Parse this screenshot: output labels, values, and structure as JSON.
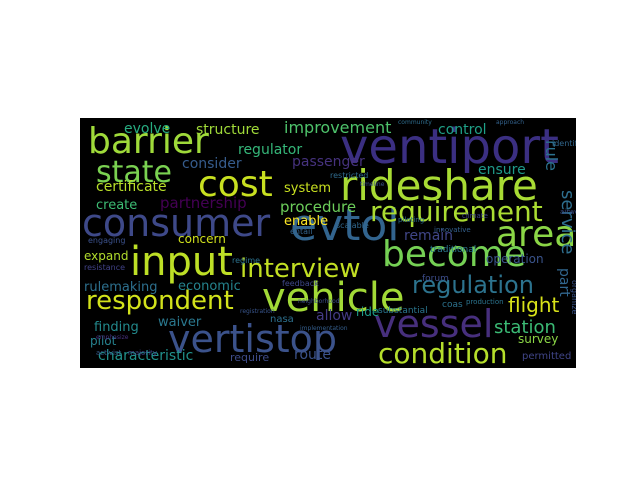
{
  "figure": {
    "background": "#000000",
    "page_background": "#ffffff"
  },
  "words": [
    {
      "text": "barrier",
      "color": "#9fda3a"
    },
    {
      "text": "ventiport",
      "color": "#3b2f82"
    },
    {
      "text": "cost",
      "color": "#c8e020"
    },
    {
      "text": "rideshare",
      "color": "#a8db34"
    },
    {
      "text": "state",
      "color": "#7ad151"
    },
    {
      "text": "consumer",
      "color": "#3e4989"
    },
    {
      "text": "evtol",
      "color": "#32648e"
    },
    {
      "text": "requirement",
      "color": "#aadc32"
    },
    {
      "text": "area",
      "color": "#8bd646"
    },
    {
      "text": "input",
      "color": "#bddf26"
    },
    {
      "text": "become",
      "color": "#75d054"
    },
    {
      "text": "interview",
      "color": "#c2df23"
    },
    {
      "text": "vehicle",
      "color": "#a2da37"
    },
    {
      "text": "respondent",
      "color": "#d2e21b"
    },
    {
      "text": "regulation",
      "color": "#2c738e"
    },
    {
      "text": "vessel",
      "color": "#472f7d"
    },
    {
      "text": "vertistop",
      "color": "#3b528b"
    },
    {
      "text": "condition",
      "color": "#b5de2b"
    },
    {
      "text": "flight",
      "color": "#d8e219"
    },
    {
      "text": "station",
      "color": "#3bbb75"
    },
    {
      "text": "evolve",
      "color": "#27ad81"
    },
    {
      "text": "structure",
      "color": "#a0da39"
    },
    {
      "text": "improvement",
      "color": "#4ec36b"
    },
    {
      "text": "control",
      "color": "#1fa187"
    },
    {
      "text": "regulator",
      "color": "#35b779"
    },
    {
      "text": "consider",
      "color": "#365c8d"
    },
    {
      "text": "passenger",
      "color": "#46327e"
    },
    {
      "text": "ensure",
      "color": "#1f998a"
    },
    {
      "text": "service",
      "color": "#2e6e8e"
    },
    {
      "text": "rule",
      "color": "#2c728e"
    },
    {
      "text": "certificate",
      "color": "#b8de29"
    },
    {
      "text": "system",
      "color": "#c8e020"
    },
    {
      "text": "procedure",
      "color": "#6ccd5a"
    },
    {
      "text": "partnership",
      "color": "#440154"
    },
    {
      "text": "create",
      "color": "#3dbc74"
    },
    {
      "text": "enable",
      "color": "#fde725"
    },
    {
      "text": "remain",
      "color": "#404688"
    },
    {
      "text": "concern",
      "color": "#d0e11c"
    },
    {
      "text": "part",
      "color": "#31668e"
    },
    {
      "text": "expand",
      "color": "#b2dd2d"
    },
    {
      "text": "economic",
      "color": "#25848e"
    },
    {
      "text": "operation",
      "color": "#3a538b"
    },
    {
      "text": "rulemaking",
      "color": "#2d708e"
    },
    {
      "text": "allow",
      "color": "#443b84"
    },
    {
      "text": "finding",
      "color": "#238a8d"
    },
    {
      "text": "waiver",
      "color": "#2a788e"
    },
    {
      "text": "pilot",
      "color": "#26828e"
    },
    {
      "text": "characteristic",
      "color": "#21918c"
    },
    {
      "text": "route",
      "color": "#3b528b"
    },
    {
      "text": "require",
      "color": "#3e4c8a"
    },
    {
      "text": "survey",
      "color": "#8bd646"
    },
    {
      "text": "permitted",
      "color": "#404588"
    },
    {
      "text": "ride",
      "color": "#1e9c89"
    },
    {
      "text": "substantial",
      "color": "#2a768e"
    },
    {
      "text": "coas",
      "color": "#2c728e"
    },
    {
      "text": "nasa",
      "color": "#2d708e"
    },
    {
      "text": "forum",
      "color": "#3d4d8a"
    },
    {
      "text": "organize",
      "color": "#3a548c"
    },
    {
      "text": "traditional",
      "color": "#2a778e"
    },
    {
      "text": "scalable",
      "color": "#31688e"
    },
    {
      "text": "community",
      "color": "#2e6d8e"
    },
    {
      "text": "approach",
      "color": "#33628d"
    },
    {
      "text": "restricted",
      "color": "#2f6b8e"
    },
    {
      "text": "engaging",
      "color": "#3b518b"
    },
    {
      "text": "resistance",
      "color": "#414287"
    },
    {
      "text": "regime",
      "color": "#2c728e"
    },
    {
      "text": "activist",
      "color": "#365d8d"
    },
    {
      "text": "majority",
      "color": "#3f4788"
    },
    {
      "text": "entail",
      "color": "#33638d"
    },
    {
      "text": "feedback",
      "color": "#3f4889"
    },
    {
      "text": "innovative",
      "color": "#34608d"
    },
    {
      "text": "production",
      "color": "#2b748e"
    },
    {
      "text": "identify",
      "color": "#31678e"
    },
    {
      "text": "timeline",
      "color": "#3b518b"
    },
    {
      "text": "emphasize",
      "color": "#46317e"
    },
    {
      "text": "airworthy",
      "color": "#3c508b"
    },
    {
      "text": "registration",
      "color": "#39558c"
    },
    {
      "text": "neighborhood",
      "color": "#3d4e8a"
    },
    {
      "text": "implementation",
      "color": "#355f8d"
    },
    {
      "text": "climate",
      "color": "#404688"
    },
    {
      "text": "piloting",
      "color": "#2e6e8e"
    }
  ]
}
